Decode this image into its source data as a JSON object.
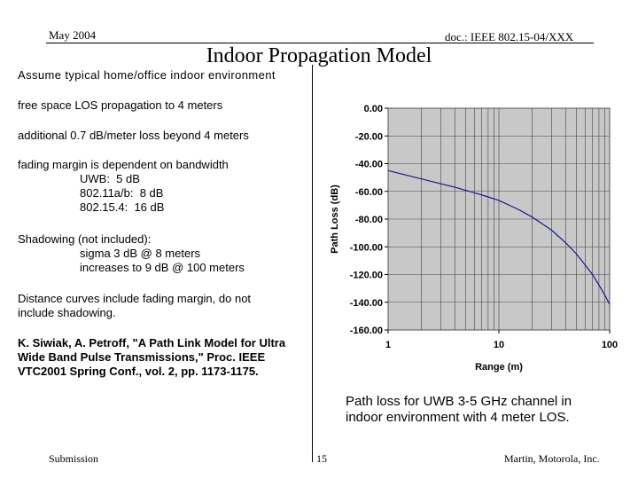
{
  "header": {
    "date": "May 2004",
    "doc_id": "doc.: IEEE 802.15-04/XXX",
    "title": "Indoor Propagation Model"
  },
  "body": {
    "assume": "Assume typical home/office indoor environment",
    "free_space": "free space LOS propagation to 4 meters",
    "additional_loss": "additional 0.7 dB/meter loss beyond 4 meters",
    "fading": {
      "intro": "fading margin is dependent on bandwidth",
      "items": [
        "UWB:  5 dB",
        "802.11a/b:  8 dB",
        "802.15.4:  16 dB"
      ]
    },
    "shadowing": {
      "intro": "Shadowing (not included):",
      "items": [
        "sigma 3 dB @ 8 meters",
        "increases to 9 dB @ 100 meters"
      ]
    },
    "distance_note": [
      "Distance curves include fading margin, do not",
      "include shadowing."
    ],
    "reference": [
      "K. Siwiak, A. Petroff, \"A Path Link Model for Ultra",
      "Wide Band Pulse Transmissions,\" Proc. IEEE",
      "VTC2001 Spring Conf., vol. 2, pp. 1173-1175."
    ],
    "caption": [
      "Path loss for UWB 3-5 GHz channel in",
      "indoor environment with 4 meter LOS."
    ]
  },
  "chart_data": {
    "type": "line",
    "xlabel": "Range (m)",
    "ylabel": "Path Loss (dB)",
    "xscale": "log",
    "xlim": [
      1,
      100
    ],
    "ylim": [
      -160,
      0
    ],
    "xticks": [
      "1",
      "10",
      "100"
    ],
    "yticks": [
      "0.00",
      "-20.00",
      "-40.00",
      "-60.00",
      "-80.00",
      "-100.00",
      "-120.00",
      "-140.00",
      "-160.00"
    ],
    "grid": true,
    "series": [
      {
        "x": [
          1,
          2,
          3,
          4,
          6,
          8,
          10,
          15,
          20,
          30,
          40,
          50,
          60,
          70,
          80,
          90,
          100
        ],
        "y": [
          -45,
          -51,
          -54.5,
          -57,
          -61,
          -64,
          -66.5,
          -73,
          -78.5,
          -88,
          -97,
          -105,
          -113,
          -120,
          -127.5,
          -134.5,
          -141.5
        ]
      }
    ],
    "colors": {
      "line": "#1a1a8c",
      "plot_bg": "#c8c8c8"
    }
  },
  "footer": {
    "left": "Submission",
    "page": "15",
    "right": "Martin, Motorola, Inc."
  }
}
